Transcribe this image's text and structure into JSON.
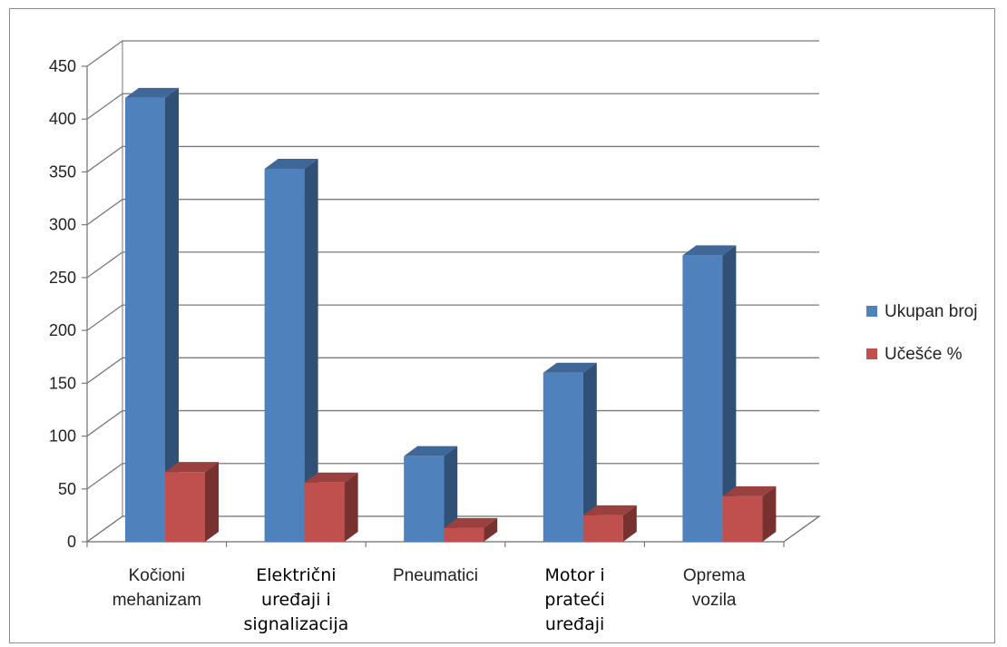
{
  "chart_data": {
    "type": "bar",
    "title": "",
    "xlabel": "",
    "ylabel": "",
    "categories": [
      [
        "Kočioni",
        "mehanizam"
      ],
      [
        "Električni",
        "uređaji i",
        "signalizacija"
      ],
      [
        "Pneumatici"
      ],
      [
        "Motor i",
        "prateći",
        "uređaji"
      ],
      [
        "Oprema",
        "vozila"
      ]
    ],
    "category_bold": [
      false,
      true,
      false,
      true,
      false
    ],
    "series": [
      {
        "name": "Ukupan broj",
        "color": "#4f81bd",
        "values": [
          420,
          353,
          81,
          160,
          271
        ]
      },
      {
        "name": "Učešće %",
        "color": "#c0504d",
        "values": [
          66,
          56,
          13,
          25,
          43
        ]
      }
    ],
    "ylim": [
      0,
      450
    ],
    "yticks": [
      "0",
      "50",
      "100",
      "150",
      "200",
      "250",
      "300",
      "350",
      "400",
      "450"
    ],
    "grid": true,
    "legend_position": "right"
  }
}
